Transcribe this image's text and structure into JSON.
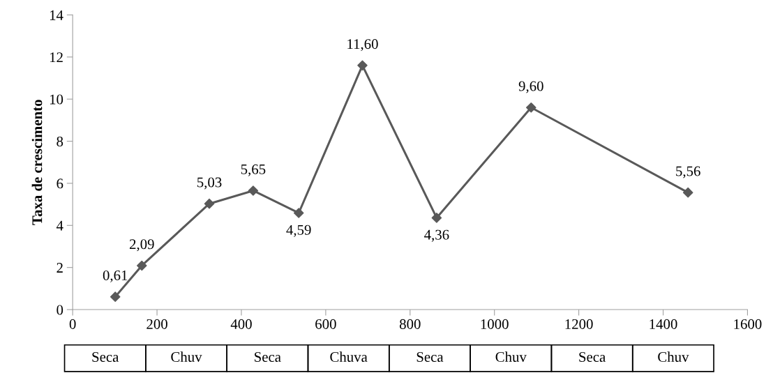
{
  "chart_data": {
    "type": "line",
    "ylabel": "Taxa de crescimento",
    "x": [
      101,
      164,
      324,
      428,
      536,
      687,
      863,
      1087,
      1459
    ],
    "series": [
      {
        "color": "#595959",
        "values": [
          0.61,
          2.09,
          5.03,
          5.65,
          4.59,
          11.6,
          4.36,
          9.6,
          5.56
        ],
        "value_labels": [
          "0,61",
          "2,09",
          "5,03",
          "5,65",
          "4,59",
          "11,60",
          "4,36",
          "9,60",
          "5,56"
        ]
      }
    ],
    "xlim": [
      0,
      1600
    ],
    "xticks": [
      0,
      200,
      400,
      600,
      800,
      1000,
      1200,
      1400,
      1600
    ],
    "ylim": [
      0,
      14
    ],
    "yticks": [
      0,
      2,
      4,
      6,
      8,
      10,
      12,
      14
    ],
    "marker": "diamond",
    "line_style": "solid",
    "grid": false,
    "legend": false,
    "annotations": [
      "Seca",
      "Chuv",
      "Seca",
      "Chuva",
      "Seca",
      "Chuv",
      "Seca",
      "Chuv"
    ]
  }
}
